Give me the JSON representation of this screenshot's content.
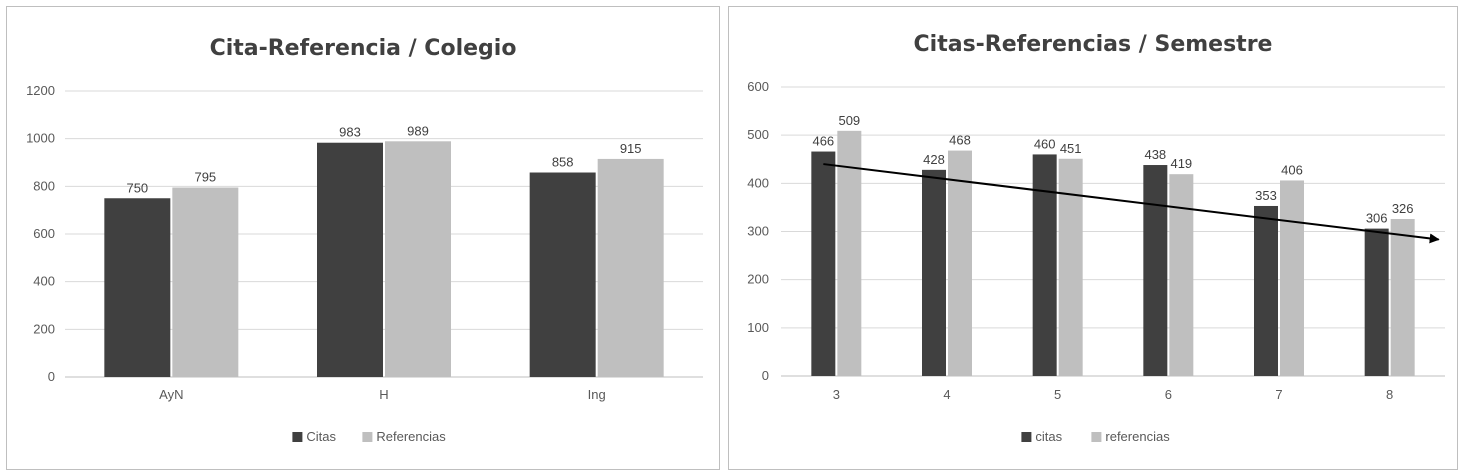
{
  "chart_data": [
    {
      "type": "bar",
      "title": "Cita-Referencia / Colegio",
      "categories": [
        "AyN",
        "H",
        "Ing"
      ],
      "series": [
        {
          "name": "Citas",
          "values": [
            750,
            983,
            858
          ],
          "color": "#404040"
        },
        {
          "name": "Referencias",
          "values": [
            795,
            989,
            915
          ],
          "color": "#bfbfbf"
        }
      ],
      "ylim": [
        0,
        1200
      ],
      "yticks": [
        0,
        200,
        400,
        600,
        800,
        1000,
        1200
      ],
      "grid": true,
      "legend": "bottom"
    },
    {
      "type": "bar",
      "title": "Citas-Referencias / Semestre",
      "categories": [
        "3",
        "4",
        "5",
        "6",
        "7",
        "8"
      ],
      "series": [
        {
          "name": "citas",
          "values": [
            466,
            428,
            460,
            438,
            353,
            306
          ],
          "color": "#404040"
        },
        {
          "name": "referencias",
          "values": [
            509,
            468,
            451,
            419,
            406,
            326
          ],
          "color": "#bfbfbf"
        }
      ],
      "ylim": [
        0,
        600
      ],
      "yticks": [
        0,
        100,
        200,
        300,
        400,
        500,
        600
      ],
      "grid": true,
      "legend": "bottom",
      "trend_arrow": {
        "from": {
          "x": "3",
          "y": 440
        },
        "to": {
          "x": "8",
          "y": 300
        },
        "color": "#000000"
      }
    }
  ]
}
